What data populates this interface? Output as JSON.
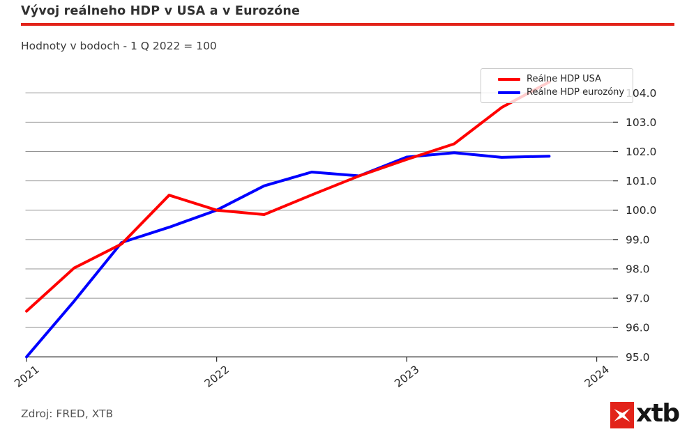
{
  "header": {
    "title": "Vývoj reálneho HDP v USA a v Eurozóne",
    "subtitle": "Hodnoty v bodoch - 1 Q 2022 = 100"
  },
  "accent_red": "#e2231a",
  "legend": {
    "items": [
      {
        "label": "Reálne HDP USA",
        "color": "#ff0000"
      },
      {
        "label": "Reálne HDP eurozóny",
        "color": "#0000ff"
      }
    ]
  },
  "chart_data": {
    "type": "line",
    "title": "Vývoj reálneho HDP v USA a v Eurozóne",
    "subtitle": "Hodnoty v bodoch - 1 Q 2022 = 100",
    "x_unit": "quarter (decimal year)",
    "x": [
      2021.0,
      2021.25,
      2021.5,
      2021.75,
      2022.0,
      2022.25,
      2022.5,
      2022.75,
      2023.0,
      2023.25,
      2023.5,
      2023.75
    ],
    "series": [
      {
        "name": "Reálne HDP USA",
        "color": "#ff0000",
        "values": [
          96.56,
          98.03,
          98.85,
          100.51,
          100.0,
          99.85,
          100.52,
          101.17,
          101.73,
          102.26,
          103.5,
          104.37
        ]
      },
      {
        "name": "Reálne HDP eurozóny",
        "color": "#0000ff",
        "values": [
          95.0,
          96.9,
          98.9,
          99.42,
          100.0,
          100.83,
          101.3,
          101.17,
          101.81,
          101.96,
          101.8,
          101.84
        ]
      }
    ],
    "x_ticks": [
      {
        "pos": 2021,
        "label": "2021"
      },
      {
        "pos": 2022,
        "label": "2022"
      },
      {
        "pos": 2023,
        "label": "2023"
      },
      {
        "pos": 2024,
        "label": "2024"
      }
    ],
    "y_ticks": [
      95.0,
      96.0,
      97.0,
      98.0,
      99.0,
      100.0,
      101.0,
      102.0,
      103.0,
      104.0
    ],
    "ylim": [
      95.0,
      104.6
    ],
    "xlim": [
      2020.994,
      2024.086
    ],
    "grid": "horizontal",
    "grid_color": "#949494",
    "axis_color": "#333333",
    "tick_label_color": "#262626",
    "y_axis_side": "right",
    "legend_position": "top-right"
  },
  "footer": {
    "source": "Zdroj: FRED, XTB",
    "logo_text": "xtb"
  }
}
